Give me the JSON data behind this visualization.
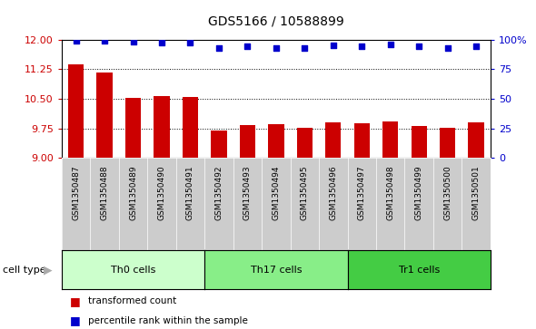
{
  "title": "GDS5166 / 10588899",
  "samples": [
    "GSM1350487",
    "GSM1350488",
    "GSM1350489",
    "GSM1350490",
    "GSM1350491",
    "GSM1350492",
    "GSM1350493",
    "GSM1350494",
    "GSM1350495",
    "GSM1350496",
    "GSM1350497",
    "GSM1350498",
    "GSM1350499",
    "GSM1350500",
    "GSM1350501"
  ],
  "bar_values": [
    11.38,
    11.17,
    10.52,
    10.57,
    10.55,
    9.69,
    9.84,
    9.86,
    9.76,
    9.91,
    9.87,
    9.93,
    9.8,
    9.76,
    9.9
  ],
  "percentile_values": [
    99,
    99,
    98,
    97,
    97,
    93,
    94,
    93,
    93,
    95,
    94,
    96,
    94,
    93,
    94
  ],
  "bar_color": "#cc0000",
  "dot_color": "#0000cc",
  "ylim_left": [
    9,
    12
  ],
  "ylim_right": [
    0,
    100
  ],
  "yticks_left": [
    9,
    9.75,
    10.5,
    11.25,
    12
  ],
  "yticks_right": [
    0,
    25,
    50,
    75,
    100
  ],
  "ytick_labels_right": [
    "0",
    "25",
    "50",
    "75",
    "100%"
  ],
  "groups": [
    {
      "label": "Th0 cells",
      "start": 0,
      "end": 5,
      "color": "#ccffcc"
    },
    {
      "label": "Th17 cells",
      "start": 5,
      "end": 10,
      "color": "#88ee88"
    },
    {
      "label": "Tr1 cells",
      "start": 10,
      "end": 15,
      "color": "#44cc44"
    }
  ],
  "cell_type_label": "cell type",
  "legend_items": [
    {
      "label": "transformed count",
      "color": "#cc0000"
    },
    {
      "label": "percentile rank within the sample",
      "color": "#0000cc"
    }
  ],
  "xtick_bg_color": "#cccccc",
  "plot_bg_color": "#ffffff",
  "bar_width": 0.55
}
